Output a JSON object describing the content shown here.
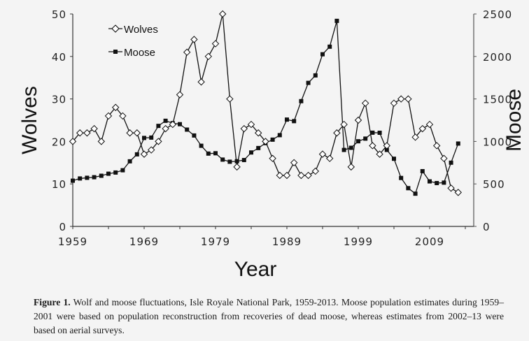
{
  "chart_data": {
    "type": "line",
    "title": "",
    "xlabel": "Year",
    "ylabel": "Wolves",
    "y2label": "Moose",
    "x": [
      1959,
      1960,
      1961,
      1962,
      1963,
      1964,
      1965,
      1966,
      1967,
      1968,
      1969,
      1970,
      1971,
      1972,
      1973,
      1974,
      1975,
      1976,
      1977,
      1978,
      1979,
      1980,
      1981,
      1982,
      1983,
      1984,
      1985,
      1986,
      1987,
      1988,
      1989,
      1990,
      1991,
      1992,
      1993,
      1994,
      1995,
      1996,
      1997,
      1998,
      1999,
      2000,
      2001,
      2002,
      2003,
      2004,
      2005,
      2006,
      2007,
      2008,
      2009,
      2010,
      2011,
      2012,
      2013
    ],
    "xticks": [
      "1959",
      "1969",
      "1979",
      "1989",
      "1999",
      "2009"
    ],
    "yticks_left": [
      "0",
      "10",
      "20",
      "30",
      "40",
      "50"
    ],
    "yticks_right": [
      "0",
      "500",
      "1000",
      "1500",
      "2000",
      "2500"
    ],
    "ylim": [
      0,
      50
    ],
    "y2lim": [
      0,
      2500
    ],
    "series": [
      {
        "name": "Wolves",
        "axis": "left",
        "marker": "open-diamond",
        "values": [
          20,
          22,
          22,
          23,
          20,
          26,
          28,
          26,
          22,
          22,
          17,
          18,
          20,
          23,
          24,
          31,
          41,
          44,
          34,
          40,
          43,
          50,
          30,
          14,
          23,
          24,
          22,
          20,
          16,
          12,
          12,
          15,
          12,
          12,
          13,
          17,
          16,
          22,
          24,
          14,
          25,
          29,
          19,
          17,
          19,
          29,
          30,
          30,
          21,
          23,
          24,
          19,
          16,
          9,
          8
        ]
      },
      {
        "name": "Moose",
        "axis": "right",
        "marker": "filled-square",
        "values": [
          538,
          564,
          572,
          579,
          596,
          620,
          634,
          661,
          766,
          848,
          1041,
          1045,
          1183,
          1243,
          1215,
          1203,
          1139,
          1070,
          949,
          857,
          861,
          786,
          761,
          767,
          781,
          870,
          922,
          980,
          1021,
          1074,
          1257,
          1239,
          1474,
          1689,
          1777,
          2026,
          2115,
          2419,
          900,
          925,
          1002,
          1033,
          1103,
          1102,
          900,
          796,
          570,
          450,
          385,
          650,
          530,
          510,
          515,
          750,
          975
        ]
      }
    ],
    "legend": [
      "Wolves",
      "Moose"
    ],
    "legend_position": "upper-left",
    "grid": false
  },
  "legend": {
    "wolves": "Wolves",
    "moose": "Moose"
  },
  "axes": {
    "x_title": "Year",
    "y_left_title": "Wolves",
    "y_right_title": "Moose"
  },
  "caption": {
    "label": "Figure 1.",
    "text": " Wolf and moose fluctuations, Isle Royale National Park, 1959-2013. Moose population estimates during 1959–2001 were based on population reconstruction from recoveries of dead moose, whereas estimates from 2002–13 were based on aerial surveys."
  }
}
